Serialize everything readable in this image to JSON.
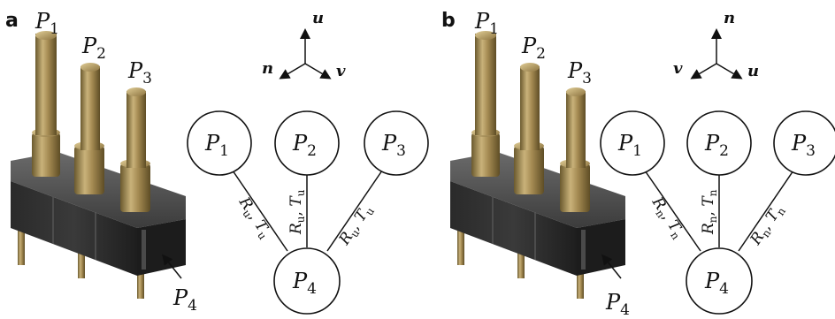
{
  "panels": [
    {
      "letter": "a",
      "pins": [
        {
          "base": "P",
          "sub": "1"
        },
        {
          "base": "P",
          "sub": "2"
        },
        {
          "base": "P",
          "sub": "3"
        }
      ],
      "housing_pin": {
        "base": "P",
        "sub": "4"
      },
      "axes": {
        "up": "u",
        "left": "n",
        "right": "v"
      },
      "nodes": [
        {
          "base": "P",
          "sub": "1"
        },
        {
          "base": "P",
          "sub": "2"
        },
        {
          "base": "P",
          "sub": "3"
        },
        {
          "base": "P",
          "sub": "4"
        }
      ],
      "edges": [
        {
          "R": "R",
          "R_sub": "u",
          "T": "T",
          "T_sub": "u"
        },
        {
          "R": "R",
          "R_sub": "u",
          "T": "T",
          "T_sub": "u"
        },
        {
          "R": "R",
          "R_sub": "u",
          "T": "T",
          "T_sub": "u"
        }
      ]
    },
    {
      "letter": "b",
      "pins": [
        {
          "base": "P",
          "sub": "1"
        },
        {
          "base": "P",
          "sub": "2"
        },
        {
          "base": "P",
          "sub": "3"
        }
      ],
      "housing_pin": {
        "base": "P",
        "sub": "4"
      },
      "axes": {
        "up": "n",
        "left": "v",
        "right": "u"
      },
      "nodes": [
        {
          "base": "P",
          "sub": "1"
        },
        {
          "base": "P",
          "sub": "2"
        },
        {
          "base": "P",
          "sub": "3"
        },
        {
          "base": "P",
          "sub": "4"
        }
      ],
      "edges": [
        {
          "R": "R",
          "R_sub": "n",
          "T": "T",
          "T_sub": "n"
        },
        {
          "R": "R",
          "R_sub": "n",
          "T": "T",
          "T_sub": "n"
        },
        {
          "R": "R",
          "R_sub": "n",
          "T": "T",
          "T_sub": "n"
        }
      ]
    }
  ]
}
